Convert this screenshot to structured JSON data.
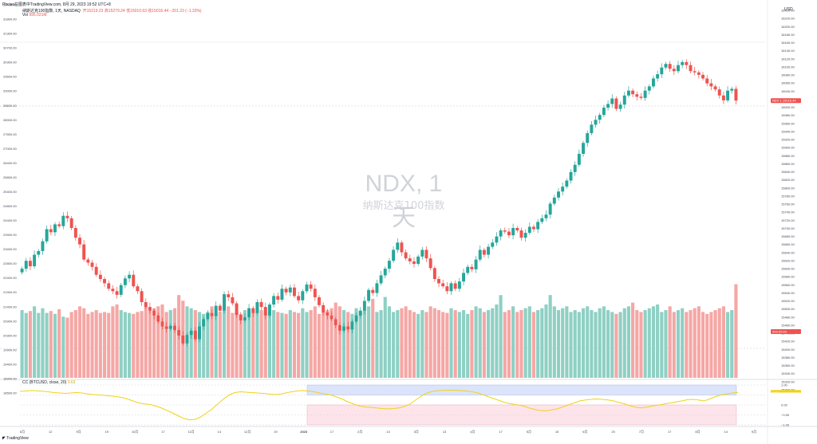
{
  "header": {
    "published": "Phcivo在图表中TradingView.com, 8月 29, 2023 19:52 UTC+8",
    "legend_prefix": "纳斯达克100指数, 1天, NASDAQ",
    "ohlc": "开15219.23  高15279.24  低15010.63  收15016.44  −201.23 (−1.33%)",
    "volume_label": "Vol",
    "volume_value": "995.021M",
    "currency": "USD",
    "branding": "TradingView"
  },
  "watermark": {
    "symbol": "NDX, 1天",
    "name": "纳斯达克100指数"
  },
  "indicator": {
    "label": "CC (BTCUSD, close, 20)",
    "value": "0.63",
    "level_upper": "0.50",
    "level_lower": "−0.50",
    "ticks": [
      "1.00",
      "0.50",
      "0.00",
      "−0.50",
      "−1.00"
    ]
  },
  "badges": {
    "price": "NDX 1 15016.44",
    "volume": "995.021M"
  },
  "chart_data": {
    "type": "candlestick",
    "symbol": "NDX",
    "interval": "1D",
    "right_axis": [
      "16420.00",
      "16220.00",
      "16200.00",
      "16180.00",
      "16160.00",
      "16140.00",
      "16120.00",
      "16100.00",
      "16080.00",
      "16060.00",
      "16040.00",
      "16020.00",
      "16000.00",
      "15980.00",
      "15960.00",
      "15940.00",
      "15920.00",
      "15900.00",
      "15880.00",
      "15860.00",
      "15840.00",
      "15820.00",
      "15800.00",
      "15780.00",
      "15760.00",
      "15740.00",
      "15720.00",
      "15700.00",
      "15680.00",
      "15660.00",
      "15640.00",
      "15620.00",
      "15600.00",
      "15580.00",
      "15560.00",
      "15540.00",
      "15520.00",
      "15500.00",
      "15480.00",
      "15460.00",
      "15440.00",
      "15420.00",
      "15400.00",
      "15380.00",
      "15360.00",
      "15340.00",
      "15320.00",
      "15300.00"
    ],
    "left_axis": [
      "32400.00",
      "31800.00",
      "31300.00",
      "30700.00",
      "30300.00",
      "29600.00",
      "29000.00",
      "28600.00",
      "28000.00",
      "27500.00",
      "27000.00",
      "26400.00",
      "25800.00",
      "25400.00",
      "24800.00",
      "24400.00",
      "23900.00",
      "23400.00",
      "22800.00",
      "22400.00",
      "21900.00",
      "21400.00",
      "20900.00",
      "20300.00",
      "19900.00",
      "19400.00",
      "18900.00",
      "18500.00"
    ],
    "x_ticks": [
      "8月",
      "12",
      "9月",
      "19",
      "10月",
      "17",
      "11月",
      "14",
      "12月",
      "19",
      "2023",
      "17",
      "2月",
      "13",
      "3月",
      "13",
      "4月",
      "17",
      "5月",
      "15",
      "6月",
      "20",
      "7月",
      "17",
      "8月",
      "14",
      "9月"
    ],
    "close": [
      12250,
      12380,
      12290,
      12480,
      12540,
      12700,
      12900,
      12850,
      12980,
      12950,
      13120,
      13080,
      12920,
      12760,
      12650,
      12400,
      12350,
      12280,
      12150,
      12080,
      12010,
      11920,
      11880,
      11820,
      11980,
      12090,
      12150,
      11960,
      11880,
      11700,
      11620,
      11560,
      11480,
      11380,
      11300,
      11260,
      11310,
      11240,
      11150,
      11020,
      11160,
      11230,
      11090,
      11300,
      11420,
      11520,
      11470,
      11640,
      11560,
      11830,
      11780,
      11680,
      11490,
      11400,
      11450,
      11600,
      11520,
      11700,
      11620,
      11480,
      11660,
      11800,
      11740,
      11920,
      11860,
      11940,
      11800,
      11730,
      11880,
      11990,
      11920,
      11780,
      11650,
      11530,
      11480,
      11420,
      11320,
      11230,
      11300,
      11250,
      11380,
      11480,
      11560,
      11720,
      11900,
      11850,
      12010,
      12140,
      12250,
      12380,
      12560,
      12680,
      12520,
      12420,
      12370,
      12330,
      12450,
      12560,
      12420,
      12260,
      12080,
      12010,
      11960,
      11880,
      12010,
      11920,
      12040,
      12180,
      12280,
      12240,
      12400,
      12560,
      12480,
      12610,
      12680,
      12780,
      12880,
      12860,
      12800,
      12920,
      12880,
      12760,
      12840,
      12940,
      12900,
      13020,
      13080,
      13140,
      13320,
      13420,
      13520,
      13600,
      13700,
      13840,
      13960,
      14140,
      14320,
      14480,
      14620,
      14700,
      14780,
      14900,
      14960,
      15050,
      14880,
      14950,
      15100,
      15180,
      15120,
      15080,
      15060,
      15180,
      15250,
      15380,
      15450,
      15560,
      15620,
      15540,
      15500,
      15600,
      15650,
      15600,
      15500,
      15480,
      15440,
      15380,
      15300,
      15250,
      15200,
      15100,
      15020,
      15180,
      15210,
      15016
    ],
    "volume_millis": [
      720,
      690,
      710,
      760,
      690,
      740,
      690,
      710,
      680,
      730,
      650,
      640,
      700,
      720,
      760,
      740,
      680,
      700,
      720,
      690,
      700,
      690,
      760,
      780,
      720,
      700,
      690,
      680,
      700,
      710,
      760,
      720,
      740,
      760,
      780,
      700,
      720,
      740,
      880,
      820,
      760,
      740,
      720,
      700,
      680,
      700,
      760,
      680,
      700,
      720,
      760,
      690,
      700,
      680,
      720,
      710,
      690,
      740,
      720,
      700,
      760,
      720,
      700,
      690,
      680,
      720,
      700,
      690,
      740,
      700,
      720,
      760,
      680,
      700,
      720,
      740,
      800,
      760,
      720,
      700,
      680,
      740,
      700,
      720,
      760,
      840,
      700,
      720,
      860,
      760,
      700,
      720,
      740,
      760,
      720,
      700,
      680,
      720,
      700,
      760,
      740,
      720,
      700,
      690,
      740,
      720,
      700,
      720,
      680,
      720,
      760,
      740,
      700,
      720,
      740,
      780,
      880,
      700,
      720,
      760,
      700,
      720,
      740,
      760,
      700,
      720,
      740,
      780,
      880,
      760,
      720,
      740,
      760,
      700,
      720,
      700,
      740,
      760,
      720,
      700,
      740,
      760,
      720,
      700,
      680,
      700,
      740,
      760,
      800,
      720,
      700,
      720,
      740,
      760,
      780,
      700,
      720,
      760,
      700,
      720,
      740,
      700,
      720,
      740,
      760,
      700,
      680,
      700,
      720,
      740,
      760,
      700,
      720,
      995
    ],
    "cc": [
      0.68,
      0.7,
      0.72,
      0.71,
      0.69,
      0.66,
      0.62,
      0.6,
      0.58,
      0.6,
      0.62,
      0.6,
      0.55,
      0.52,
      0.5,
      0.48,
      0.45,
      0.42,
      0.38,
      0.3,
      0.2,
      0.1,
      0.05,
      0.02,
      -0.05,
      -0.15,
      -0.28,
      -0.4,
      -0.55,
      -0.68,
      -0.75,
      -0.72,
      -0.6,
      -0.4,
      -0.2,
      0.05,
      0.3,
      0.5,
      0.62,
      0.66,
      0.64,
      0.62,
      0.6,
      0.58,
      0.55,
      0.52,
      0.54,
      0.6,
      0.66,
      0.7,
      0.72,
      0.7,
      0.66,
      0.6,
      0.55,
      0.5,
      0.4,
      0.3,
      0.15,
      0.05,
      -0.05,
      -0.1,
      -0.12,
      -0.15,
      -0.18,
      -0.2,
      -0.18,
      -0.15,
      -0.08,
      0.05,
      0.25,
      0.45,
      0.6,
      0.68,
      0.72,
      0.73,
      0.74,
      0.74,
      0.72,
      0.7,
      0.66,
      0.6,
      0.5,
      0.4,
      0.3,
      0.2,
      0.1,
      0.05,
      0.0,
      -0.05,
      -0.15,
      -0.22,
      -0.28,
      -0.3,
      -0.25,
      -0.2,
      -0.1,
      0.0,
      0.1,
      0.2,
      0.25,
      0.28,
      0.3,
      0.28,
      0.25,
      0.2,
      0.12,
      0.05,
      -0.05,
      -0.12,
      -0.15,
      -0.1,
      -0.05,
      0.0,
      0.05,
      0.1,
      0.15,
      0.2,
      0.26,
      0.28,
      0.25,
      0.2,
      0.3,
      0.42,
      0.5,
      0.55,
      0.6,
      0.63
    ]
  }
}
